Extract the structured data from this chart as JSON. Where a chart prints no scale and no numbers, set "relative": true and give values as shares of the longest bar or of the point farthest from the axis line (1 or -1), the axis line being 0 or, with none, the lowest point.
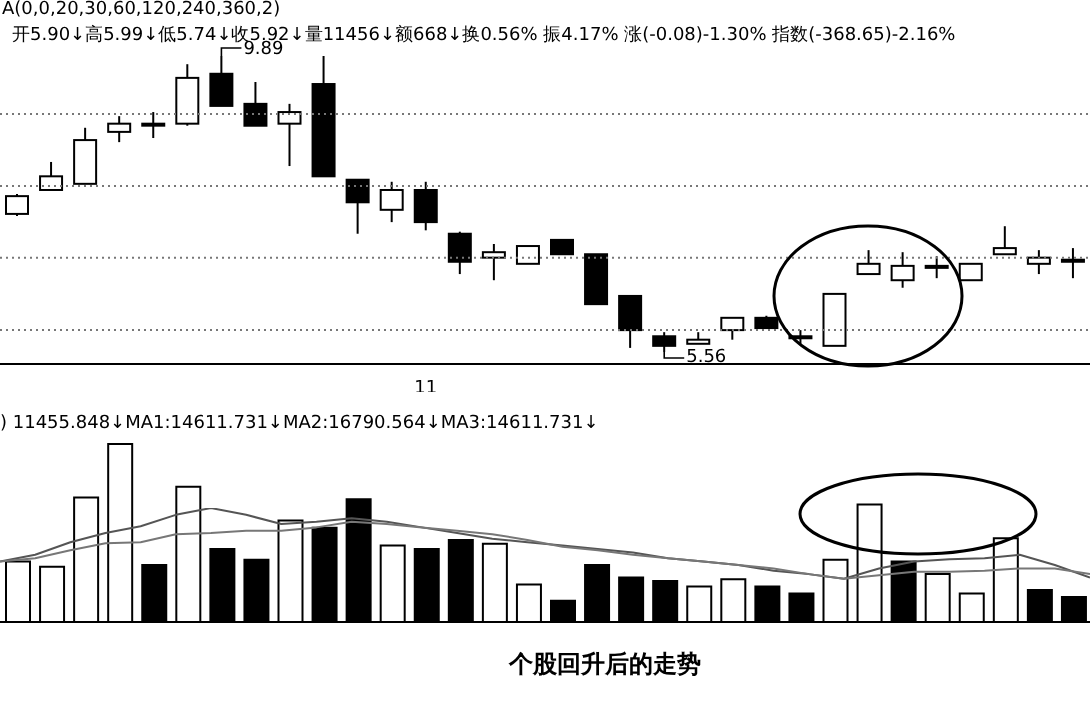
{
  "chart_data": [
    {
      "type": "candlestick",
      "categories": [
        null,
        null,
        null,
        null,
        null,
        null,
        null,
        null,
        null,
        null,
        null,
        null,
        "11",
        null,
        null,
        null,
        null,
        null,
        null,
        null,
        null,
        null,
        null,
        null,
        null,
        null,
        null,
        null,
        null,
        null,
        null,
        null
      ],
      "ohlc": [
        [
          7.58,
          7.87,
          7.55,
          7.84
        ],
        [
          7.93,
          8.34,
          7.93,
          8.13
        ],
        [
          8.02,
          8.84,
          8.02,
          8.66
        ],
        [
          8.78,
          9.01,
          8.63,
          8.9
        ],
        [
          8.9,
          9.07,
          8.69,
          8.9
        ],
        [
          8.9,
          9.77,
          8.87,
          9.57
        ],
        [
          9.63,
          9.89,
          9.16,
          9.16
        ],
        [
          9.19,
          9.51,
          8.87,
          8.87
        ],
        [
          8.9,
          9.19,
          8.28,
          9.07
        ],
        [
          9.48,
          9.89,
          8.13,
          8.13
        ],
        [
          8.08,
          8.08,
          7.29,
          7.75
        ],
        [
          7.64,
          8.05,
          7.46,
          7.93
        ],
        [
          7.93,
          8.05,
          7.34,
          7.46
        ],
        [
          7.29,
          7.32,
          6.7,
          6.88
        ],
        [
          6.94,
          7.14,
          6.61,
          7.02
        ],
        [
          6.85,
          7.11,
          6.85,
          7.11
        ],
        [
          7.2,
          7.2,
          6.99,
          6.99
        ],
        [
          6.99,
          6.99,
          6.26,
          6.26
        ],
        [
          6.38,
          6.38,
          5.62,
          5.88
        ],
        [
          5.79,
          5.85,
          5.56,
          5.65
        ],
        [
          5.68,
          5.85,
          5.68,
          5.74
        ],
        [
          5.88,
          6.06,
          5.74,
          6.06
        ],
        [
          6.06,
          6.09,
          5.91,
          5.91
        ],
        [
          5.79,
          5.88,
          5.68,
          5.79
        ],
        [
          5.65,
          6.41,
          5.65,
          6.41
        ],
        [
          6.7,
          7.05,
          6.7,
          6.85
        ],
        [
          6.61,
          7.02,
          6.5,
          6.82
        ],
        [
          6.82,
          6.96,
          6.64,
          6.82
        ],
        [
          6.61,
          6.85,
          6.61,
          6.85
        ],
        [
          6.99,
          7.4,
          6.99,
          7.08
        ],
        [
          6.85,
          7.05,
          6.7,
          6.94
        ],
        [
          6.91,
          7.08,
          6.64,
          6.88
        ]
      ],
      "colors": [
        "#ffffff",
        "#ffffff",
        "#ffffff",
        "#ffffff",
        "#ffffff",
        "#ffffff",
        "#000000",
        "#000000",
        "#ffffff",
        "#000000",
        "#000000",
        "#ffffff",
        "#000000",
        "#000000",
        "#ffffff",
        "#ffffff",
        "#000000",
        "#000000",
        "#000000",
        "#000000",
        "#ffffff",
        "#ffffff",
        "#000000",
        "#ffffff",
        "#ffffff",
        "#ffffff",
        "#ffffff",
        "#ffffff",
        "#ffffff",
        "#ffffff",
        "#ffffff",
        "#000000"
      ],
      "yticks": [
        {
          "value": 5.88,
          "label": null
        },
        {
          "value": 6.94,
          "label": null
        },
        {
          "value": 7.99,
          "label": null
        },
        {
          "value": 9.04,
          "label": null
        }
      ],
      "grid": "y",
      "tick_labels": "x",
      "annotations": [
        "A(0,0,20,30,60,120,240,360,2)",
        "开5.90↓高5.99↓低5.74↓收5.92↓量11456↓额668↓换0.56% 振4.17% 涨(-0.08)-1.30% 指数(-368.65)-2.16%",
        "9.89",
        "5.56"
      ]
    },
    {
      "type": "bar",
      "relative": true,
      "categories": [
        null,
        null,
        null,
        null,
        null,
        null,
        null,
        null,
        null,
        null,
        null,
        null,
        null,
        null,
        null,
        null,
        null,
        null,
        null,
        null,
        null,
        null,
        null,
        null,
        null,
        null,
        null,
        null,
        null,
        null,
        null,
        null
      ],
      "tick_labels": false,
      "values": [
        0.34,
        0.31,
        0.7,
        1,
        0.32,
        0.76,
        0.41,
        0.35,
        0.57,
        0.53,
        0.69,
        0.43,
        0.41,
        0.46,
        0.44,
        0.21,
        0.12,
        0.32,
        0.25,
        0.23,
        0.2,
        0.24,
        0.2,
        0.16,
        0.35,
        0.66,
        0.34,
        0.27,
        0.16,
        0.47,
        0.18,
        0.14
      ],
      "colors": [
        "#ffffff",
        "#ffffff",
        "#ffffff",
        "#ffffff",
        "#000000",
        "#ffffff",
        "#000000",
        "#000000",
        "#ffffff",
        "#000000",
        "#000000",
        "#ffffff",
        "#000000",
        "#000000",
        "#ffffff",
        "#ffffff",
        "#000000",
        "#000000",
        "#000000",
        "#000000",
        "#ffffff",
        "#ffffff",
        "#000000",
        "#000000",
        "#ffffff",
        "#ffffff",
        "#000000",
        "#ffffff",
        "#ffffff",
        "#ffffff",
        "#000000",
        "#000000"
      ],
      "annotations": [
        ") 11455.848↓MA1:14611.731↓MA2:16790.564↓MA3:14611.731↓",
        "个股回升后的走势"
      ]
    },
    {
      "type": "line",
      "relative": true,
      "categories": [
        null,
        null,
        null,
        null,
        null,
        null,
        null,
        null,
        null,
        null,
        null,
        null,
        null,
        null,
        null,
        null,
        null,
        null,
        null,
        null,
        null,
        null,
        null,
        null,
        null,
        null,
        null,
        null,
        null,
        null,
        null,
        null
      ],
      "tick_labels": false,
      "series": [
        {
          "color": "#555555",
          "values": [
            0.53,
            0.59,
            0.7,
            0.78,
            0.84,
            0.94,
            1,
            0.94,
            0.86,
            0.88,
            0.91,
            0.88,
            0.83,
            0.78,
            0.73,
            0.7,
            0.67,
            0.64,
            0.61,
            0.56,
            0.53,
            0.5,
            0.45,
            0.42,
            0.38,
            0.47,
            0.53,
            0.55,
            0.56,
            0.59,
            0.5,
            0.39
          ]
        },
        {
          "color": "#777777",
          "values": [
            0.53,
            0.56,
            0.63,
            0.69,
            0.7,
            0.77,
            0.78,
            0.8,
            0.8,
            0.83,
            0.88,
            0.86,
            0.83,
            0.8,
            0.77,
            0.72,
            0.66,
            0.63,
            0.59,
            0.56,
            0.53,
            0.5,
            0.47,
            0.42,
            0.38,
            0.41,
            0.44,
            0.44,
            0.45,
            0.47,
            0.47,
            0.42
          ]
        }
      ]
    }
  ]
}
